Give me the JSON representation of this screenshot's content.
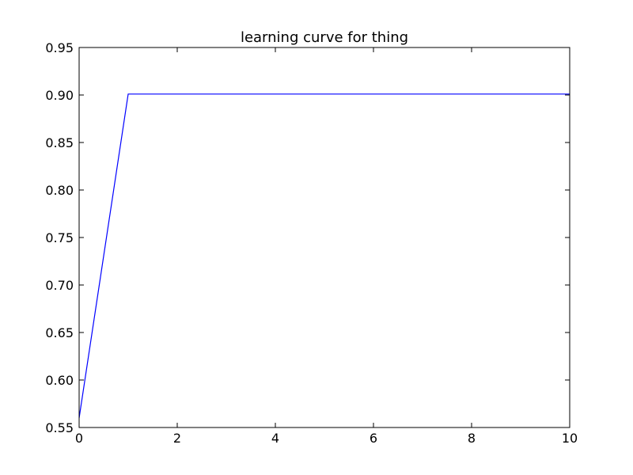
{
  "chart_data": {
    "type": "line",
    "title": "learning curve for thing",
    "xlabel": "",
    "ylabel": "",
    "xlim": [
      0,
      10
    ],
    "ylim": [
      0.55,
      0.95
    ],
    "xticks": [
      0,
      2,
      4,
      6,
      8,
      10
    ],
    "xtick_labels": [
      "0",
      "2",
      "4",
      "6",
      "8",
      "10"
    ],
    "yticks": [
      0.55,
      0.6,
      0.65,
      0.7,
      0.75,
      0.8,
      0.85,
      0.9,
      0.95
    ],
    "ytick_labels": [
      "0.55",
      "0.60",
      "0.65",
      "0.70",
      "0.75",
      "0.80",
      "0.85",
      "0.90",
      "0.95"
    ],
    "grid": false,
    "series": [
      {
        "color": "#0000ff",
        "x": [
          0,
          1,
          2,
          3,
          4,
          5,
          6,
          7,
          8,
          9,
          10
        ],
        "y": [
          0.56,
          0.901,
          0.901,
          0.901,
          0.901,
          0.901,
          0.901,
          0.901,
          0.901,
          0.901,
          0.901
        ]
      }
    ]
  }
}
